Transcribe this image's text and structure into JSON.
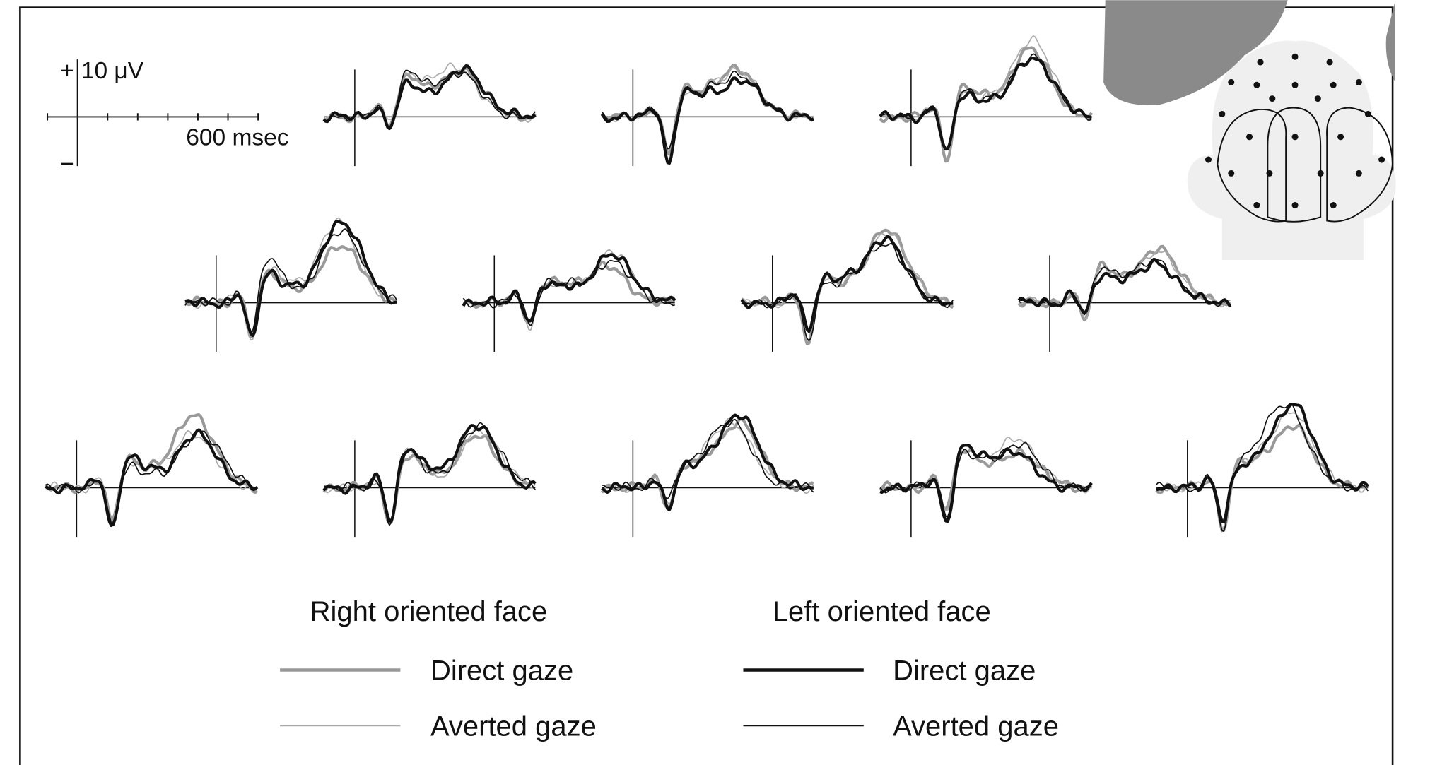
{
  "scale": {
    "plus": "+",
    "amplitude": "10 μV",
    "time": "600 msec",
    "minus": "−"
  },
  "legend": {
    "groups": [
      {
        "title": "Right oriented face",
        "items": [
          "Direct gaze",
          "Averted gaze"
        ]
      },
      {
        "title": "Left oriented face",
        "items": [
          "Direct gaze",
          "Averted gaze"
        ]
      }
    ]
  }
}
